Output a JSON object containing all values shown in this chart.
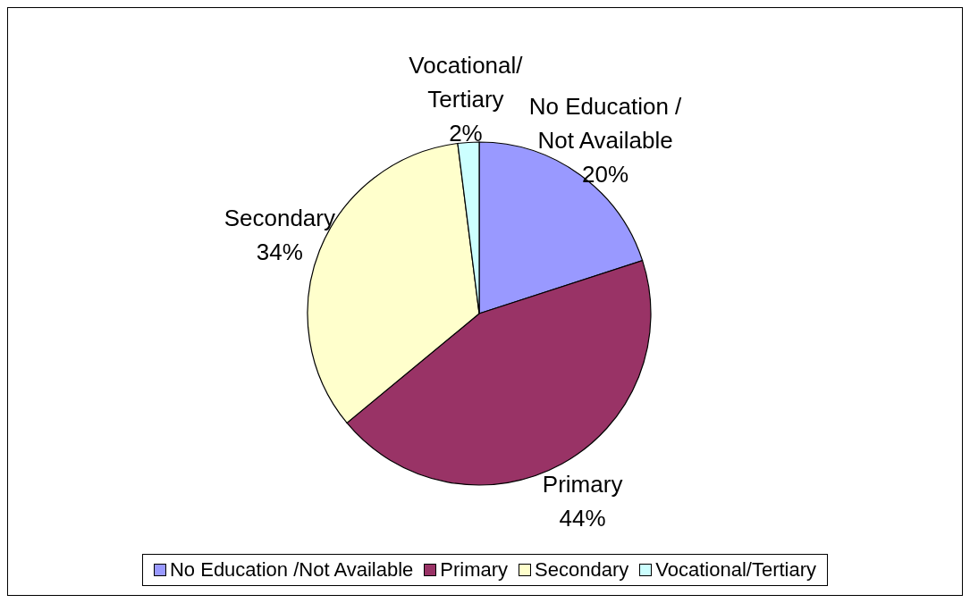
{
  "chart_data": {
    "type": "pie",
    "categories": [
      "No Education /Not Available",
      "Primary",
      "Secondary",
      "Vocational/Tertiary"
    ],
    "values": [
      20,
      44,
      34,
      2
    ],
    "colors": [
      "#9999ff",
      "#993366",
      "#ffffcc",
      "#ccffff"
    ],
    "value_labels": [
      "20%",
      "44%",
      "34%",
      "2%"
    ],
    "legend": "bottom"
  }
}
